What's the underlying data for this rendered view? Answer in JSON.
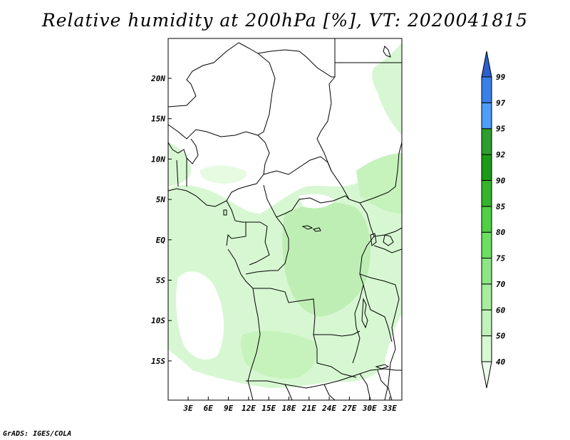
{
  "title": "Relative humidity at 200hPa [%], VT: 2020041815",
  "credit": "GrADS: IGES/COLA",
  "map": {
    "lat_labels": [
      "20N",
      "15N",
      "10N",
      "5N",
      "EQ",
      "5S",
      "10S",
      "15S"
    ],
    "lon_labels": [
      "3E",
      "6E",
      "9E",
      "12E",
      "15E",
      "18E",
      "21E",
      "24E",
      "27E",
      "30E",
      "33E"
    ]
  },
  "colorbar": {
    "labels": [
      "40",
      "50",
      "60",
      "70",
      "75",
      "80",
      "85",
      "90",
      "92",
      "95",
      "97",
      "99"
    ],
    "colors": [
      "#ecfcea",
      "#d6f8d2",
      "#c0f3b9",
      "#a6ed9d",
      "#8ce683",
      "#6cdf62",
      "#4fd045",
      "#34b42c",
      "#1d9a17",
      "#2d9d2d",
      "#4f9df5",
      "#3a7fe8",
      "#2a60d0"
    ]
  },
  "colors": {
    "humid_light": "#d7f7d2",
    "humid_mid": "#b7efab",
    "border": "#000000"
  }
}
